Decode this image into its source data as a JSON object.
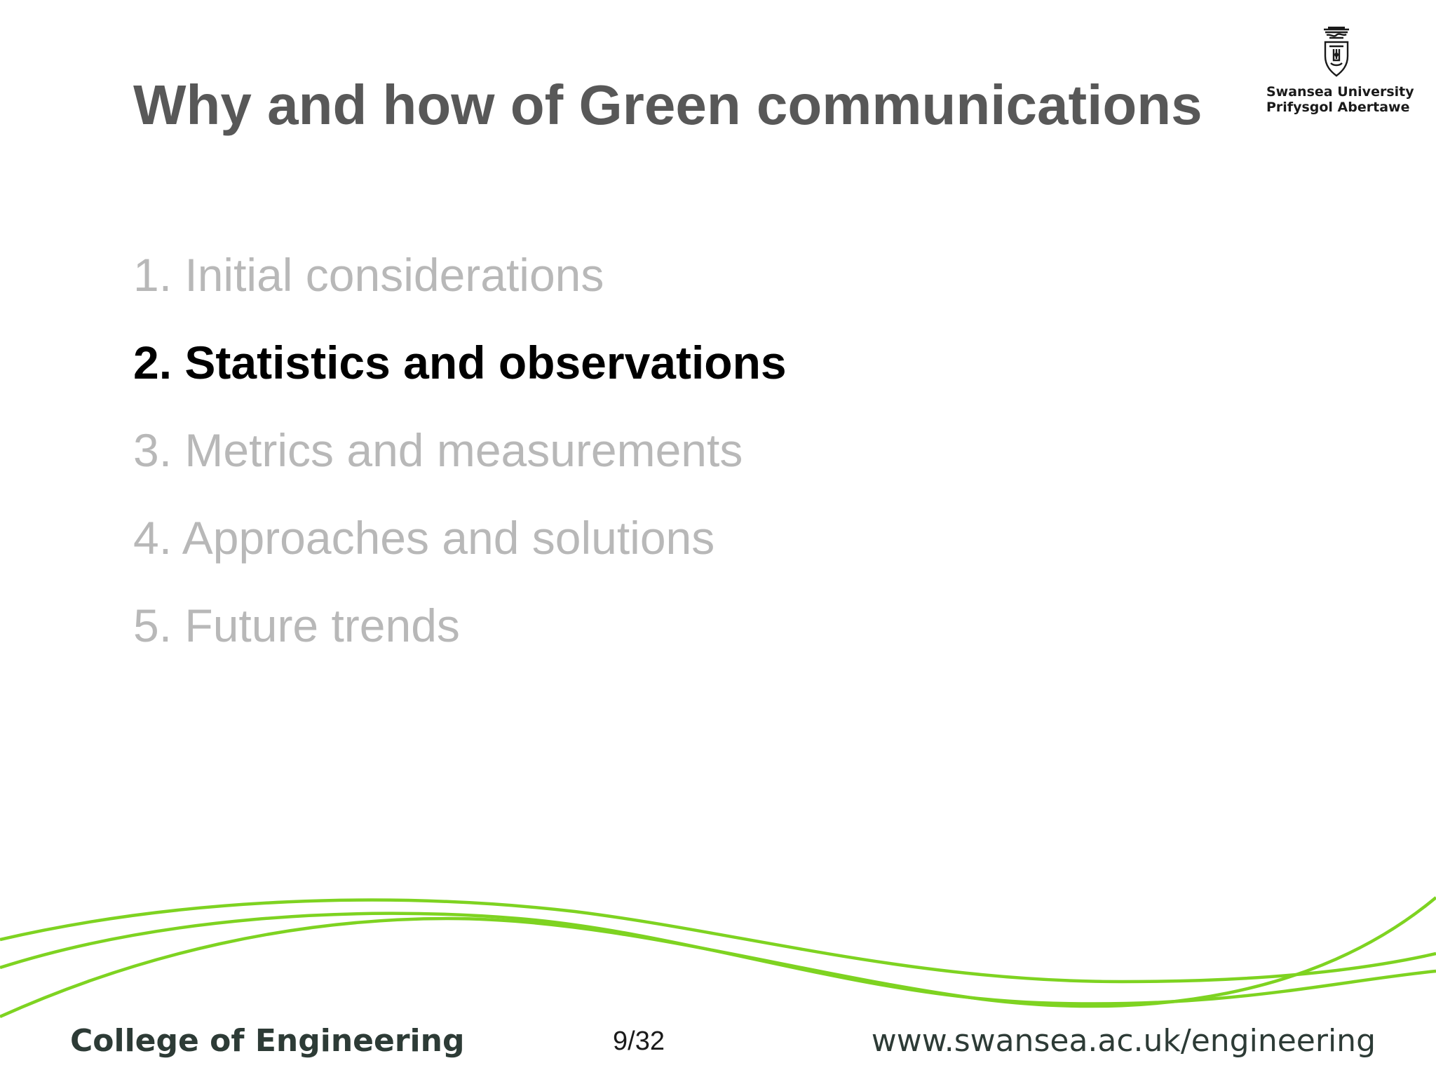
{
  "slide": {
    "title": "Why and how of Green communications",
    "logo": {
      "line1": "Swansea University",
      "line2": "Prifysgol Abertawe",
      "icon": "university-crest-icon"
    },
    "toc": {
      "items": [
        {
          "label": "1. Initial considerations"
        },
        {
          "label": "2. Statistics and observations"
        },
        {
          "label": "3. Metrics and measurements"
        },
        {
          "label": "4. Approaches and solutions"
        },
        {
          "label": "5. Future trends"
        }
      ],
      "active_index": 1
    },
    "footer": {
      "college": "College of Engineering",
      "page": "9/32",
      "url": "www.swansea.ac.uk/engineering"
    }
  },
  "colors": {
    "title": "#585858",
    "inactive_item": "#b8b8b8",
    "active_item": "#000000",
    "wave": "#7ed321",
    "footer_text": "#2d3b36"
  }
}
